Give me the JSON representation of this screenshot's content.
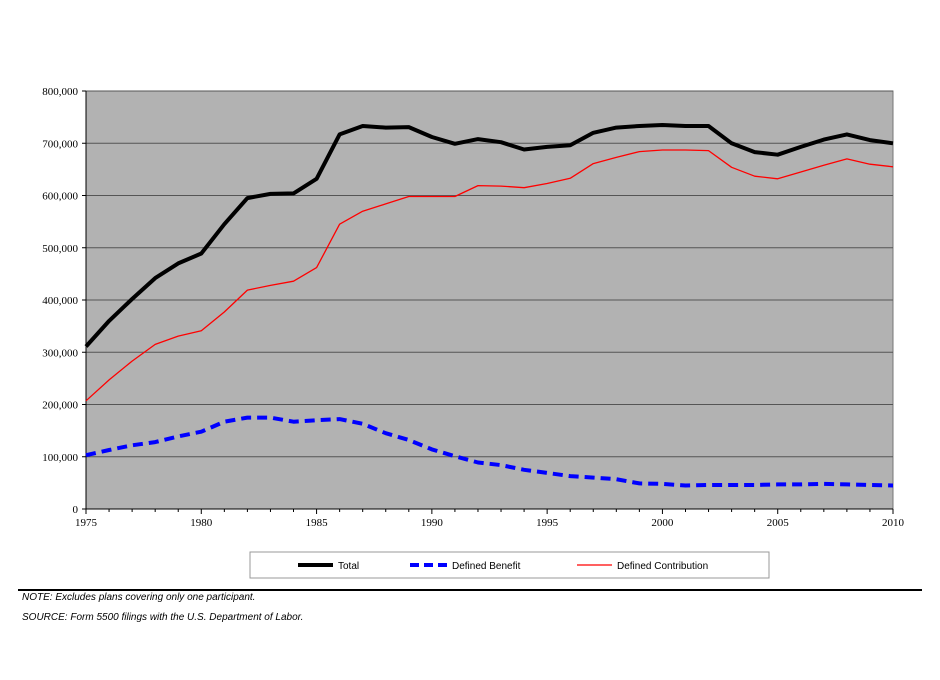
{
  "chart_data": {
    "type": "line",
    "title": "",
    "xlabel": "",
    "ylabel": "",
    "xlim": [
      1975,
      2010
    ],
    "ylim": [
      0,
      800000
    ],
    "grid": true,
    "legend_position": "bottom",
    "x_ticks": [
      1975,
      1980,
      1985,
      1990,
      1995,
      2000,
      2005,
      2010
    ],
    "x_tick_labels": [
      "1975",
      "1980",
      "1985",
      "1990",
      "1995",
      "2000",
      "2005",
      "2010"
    ],
    "y_ticks": [
      0,
      100000,
      200000,
      300000,
      400000,
      500000,
      600000,
      700000,
      800000
    ],
    "y_tick_labels": [
      "0",
      "100,000",
      "200,000",
      "300,000",
      "400,000",
      "500,000",
      "600,000",
      "700,000",
      "800,000"
    ],
    "x": [
      1975,
      1976,
      1977,
      1978,
      1979,
      1980,
      1981,
      1982,
      1983,
      1984,
      1985,
      1986,
      1987,
      1988,
      1989,
      1990,
      1991,
      1992,
      1993,
      1994,
      1995,
      1996,
      1997,
      1998,
      1999,
      2000,
      2001,
      2002,
      2003,
      2004,
      2005,
      2006,
      2007,
      2008,
      2009,
      2010
    ],
    "series": [
      {
        "name": "Total",
        "color": "#000000",
        "style": "solid-thick",
        "values": [
          311000,
          360000,
          402000,
          442000,
          470000,
          489000,
          545000,
          595000,
          603000,
          604000,
          632000,
          717000,
          733000,
          730000,
          731000,
          712000,
          699000,
          708000,
          702000,
          688000,
          693000,
          696000,
          720000,
          730000,
          733000,
          735000,
          733000,
          733000,
          700000,
          683000,
          678000,
          693000,
          707000,
          717000,
          706000,
          700000
        ]
      },
      {
        "name": "Defined Benefit",
        "color": "#0000ff",
        "style": "dashed-thick",
        "values": [
          103000,
          113000,
          122000,
          128000,
          139000,
          148000,
          167000,
          175000,
          175000,
          167000,
          170000,
          172000,
          163000,
          145000,
          132000,
          114000,
          101000,
          89000,
          84000,
          75000,
          69000,
          63000,
          60000,
          57000,
          49000,
          48000,
          45000,
          46000,
          46000,
          46000,
          47000,
          47000,
          48000,
          47000,
          46000,
          45000
        ]
      },
      {
        "name": "Defined Contribution",
        "color": "#ff0000",
        "style": "solid-thin",
        "values": [
          207000,
          247000,
          283000,
          315000,
          331000,
          341000,
          377000,
          419000,
          428000,
          436000,
          462000,
          545000,
          570000,
          584000,
          598000,
          598000,
          598000,
          619000,
          618000,
          615000,
          623000,
          633000,
          661000,
          673000,
          684000,
          687000,
          687000,
          686000,
          654000,
          637000,
          632000,
          645000,
          658000,
          670000,
          660000,
          655000
        ]
      }
    ]
  },
  "colors": {
    "plot_background": "#b2b2b2",
    "grid": "#555555"
  },
  "notes": {
    "note": "NOTE: Excludes plans covering only one participant.",
    "source": "SOURCE: Form 5500 filings with the U.S. Department of Labor."
  }
}
